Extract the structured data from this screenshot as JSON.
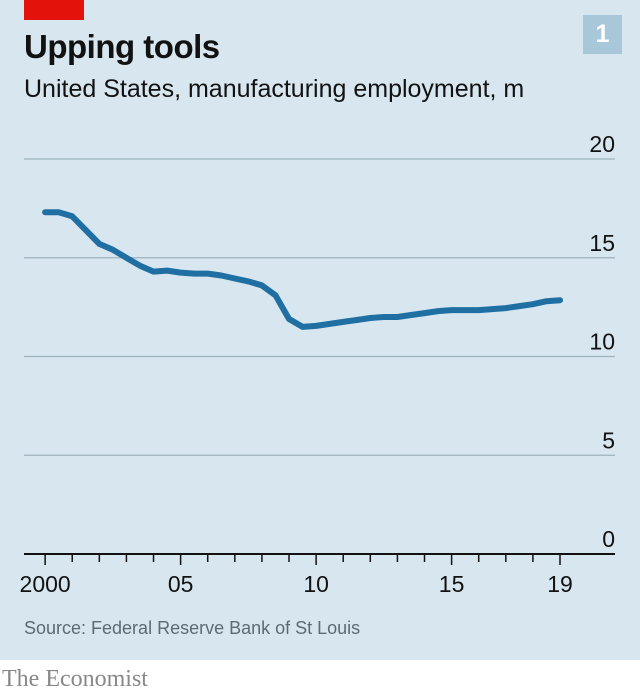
{
  "chart_data": {
    "type": "line",
    "title": "Upping tools",
    "subtitle": "United States, manufacturing employment, m",
    "badge": "1",
    "source": "Source: Federal Reserve Bank of St Louis",
    "brand": "The Economist",
    "ylim": [
      0,
      20
    ],
    "y_ticks": [
      0,
      5,
      10,
      15,
      20
    ],
    "x_tick_labels": [
      {
        "year": 2000,
        "label": "2000"
      },
      {
        "year": 2005,
        "label": "05"
      },
      {
        "year": 2010,
        "label": "10"
      },
      {
        "year": 2015,
        "label": "15"
      },
      {
        "year": 2019,
        "label": "19"
      }
    ],
    "xlim": [
      1999.7,
      2019.0
    ],
    "grid": "horizontal",
    "line_color": "#1f6fa3",
    "series": [
      {
        "values": [
          {
            "x": 2000.0,
            "y": 17.3
          },
          {
            "x": 2000.5,
            "y": 17.3
          },
          {
            "x": 2001.0,
            "y": 17.1
          },
          {
            "x": 2001.5,
            "y": 16.4
          },
          {
            "x": 2002.0,
            "y": 15.7
          },
          {
            "x": 2002.5,
            "y": 15.4
          },
          {
            "x": 2003.0,
            "y": 15.0
          },
          {
            "x": 2003.5,
            "y": 14.6
          },
          {
            "x": 2004.0,
            "y": 14.3
          },
          {
            "x": 2004.5,
            "y": 14.35
          },
          {
            "x": 2005.0,
            "y": 14.25
          },
          {
            "x": 2005.5,
            "y": 14.2
          },
          {
            "x": 2006.0,
            "y": 14.2
          },
          {
            "x": 2006.5,
            "y": 14.1
          },
          {
            "x": 2007.0,
            "y": 13.95
          },
          {
            "x": 2007.5,
            "y": 13.8
          },
          {
            "x": 2008.0,
            "y": 13.6
          },
          {
            "x": 2008.5,
            "y": 13.1
          },
          {
            "x": 2009.0,
            "y": 11.9
          },
          {
            "x": 2009.5,
            "y": 11.5
          },
          {
            "x": 2010.0,
            "y": 11.55
          },
          {
            "x": 2010.5,
            "y": 11.65
          },
          {
            "x": 2011.0,
            "y": 11.75
          },
          {
            "x": 2011.5,
            "y": 11.85
          },
          {
            "x": 2012.0,
            "y": 11.95
          },
          {
            "x": 2012.5,
            "y": 12.0
          },
          {
            "x": 2013.0,
            "y": 12.0
          },
          {
            "x": 2013.5,
            "y": 12.1
          },
          {
            "x": 2014.0,
            "y": 12.2
          },
          {
            "x": 2014.5,
            "y": 12.3
          },
          {
            "x": 2015.0,
            "y": 12.35
          },
          {
            "x": 2015.5,
            "y": 12.35
          },
          {
            "x": 2016.0,
            "y": 12.35
          },
          {
            "x": 2016.5,
            "y": 12.4
          },
          {
            "x": 2017.0,
            "y": 12.45
          },
          {
            "x": 2017.5,
            "y": 12.55
          },
          {
            "x": 2018.0,
            "y": 12.65
          },
          {
            "x": 2018.5,
            "y": 12.8
          },
          {
            "x": 2019.0,
            "y": 12.85
          }
        ]
      }
    ]
  }
}
